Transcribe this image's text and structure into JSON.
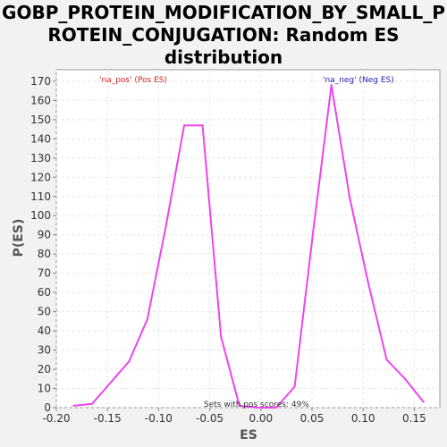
{
  "chart_data": {
    "type": "line",
    "title_lines": [
      "GOBP_PROTEIN_MODIFICATION_BY_SMALL_P",
      "ROTEIN_CONJUGATION: Random ES",
      "distribution"
    ],
    "xlabel": "ES",
    "ylabel": "P(ES)",
    "xlim": [
      -0.2,
      0.175
    ],
    "ylim": [
      0,
      176
    ],
    "x_ticks": [
      -0.2,
      -0.15,
      -0.1,
      -0.05,
      0.0,
      0.05,
      0.1,
      0.15
    ],
    "x_tick_labels": [
      "-0.20",
      "-0.15",
      "-0.10",
      "-0.05",
      "0.00",
      "0.05",
      "0.10",
      "0.15"
    ],
    "y_ticks": [
      0,
      10,
      20,
      30,
      40,
      50,
      60,
      70,
      80,
      90,
      100,
      110,
      120,
      130,
      140,
      150,
      160,
      170
    ],
    "grid": true,
    "series": [
      {
        "name": "",
        "color": "#ee44ee",
        "x": [
          -0.183,
          -0.165,
          -0.147,
          -0.129,
          -0.111,
          -0.093,
          -0.075,
          -0.057,
          -0.039,
          -0.021,
          -0.003,
          0.015,
          0.033,
          0.051,
          0.069,
          0.087,
          0.105,
          0.123,
          0.141,
          0.159
        ],
        "y": [
          1,
          2,
          13,
          24,
          46,
          94,
          147,
          147,
          37,
          1,
          0,
          0,
          11,
          91,
          168,
          109,
          65,
          25,
          15,
          3
        ]
      }
    ],
    "annotations": [
      {
        "text": "'na_pos' (Pos ES)",
        "color": "#dd2222",
        "anchor": "top-left"
      },
      {
        "text": "'na_neg' (Neg ES)",
        "color": "#2222bb",
        "anchor": "top-right"
      },
      {
        "text": "Sets with pos scores: 49%",
        "color": "#333333",
        "anchor": "bottom-center"
      }
    ]
  }
}
